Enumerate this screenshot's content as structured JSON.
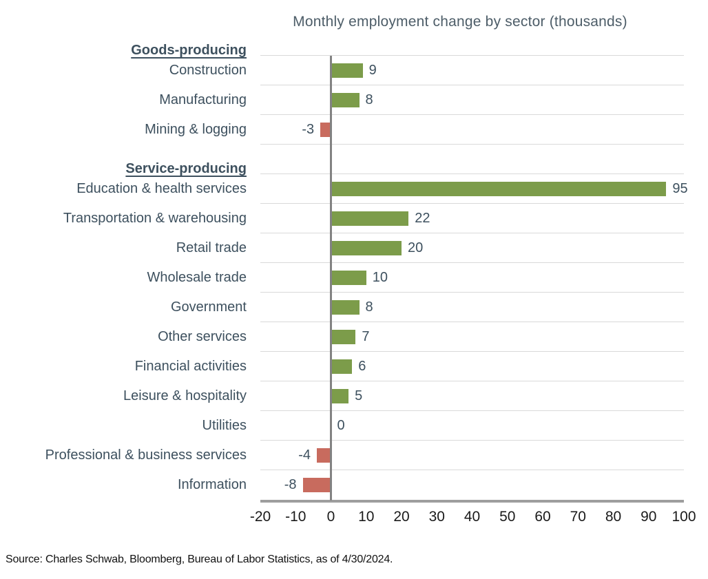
{
  "title": "Monthly employment change by sector (thousands)",
  "source": "Source: Charles Schwab, Bloomberg, Bureau of Labor Statistics, as of 4/30/2024.",
  "chart_data": {
    "type": "bar",
    "orientation": "horizontal",
    "title": "Monthly employment change by sector (thousands)",
    "xlabel": "",
    "ylabel": "",
    "xlim": [
      -20,
      100
    ],
    "xticks": [
      -20,
      -10,
      0,
      10,
      20,
      30,
      40,
      50,
      60,
      70,
      80,
      90,
      100
    ],
    "grid": "category-boundary-lines",
    "legend": "none",
    "groups": [
      {
        "header": "Goods-producing",
        "items": [
          {
            "label": "Construction",
            "value": 9
          },
          {
            "label": "Manufacturing",
            "value": 8
          },
          {
            "label": "Mining & logging",
            "value": -3
          }
        ]
      },
      {
        "header": "Service-producing",
        "items": [
          {
            "label": "Education & health services",
            "value": 95
          },
          {
            "label": "Transportation & warehousing",
            "value": 22
          },
          {
            "label": "Retail trade",
            "value": 20
          },
          {
            "label": "Wholesale trade",
            "value": 10
          },
          {
            "label": "Government",
            "value": 8
          },
          {
            "label": "Other services",
            "value": 7
          },
          {
            "label": "Financial activities",
            "value": 6
          },
          {
            "label": "Leisure & hospitality",
            "value": 5
          },
          {
            "label": "Utilities",
            "value": 0
          },
          {
            "label": "Professional & business services",
            "value": -4
          },
          {
            "label": "Information",
            "value": -8
          }
        ]
      }
    ],
    "colors": {
      "positive": "#7c9c4a",
      "negative": "#c86b5e",
      "gridline": "#d9d9d9",
      "zero_axis": "#828282",
      "bottom_axis": "#9e9e9e",
      "text": "#3d505e"
    }
  }
}
